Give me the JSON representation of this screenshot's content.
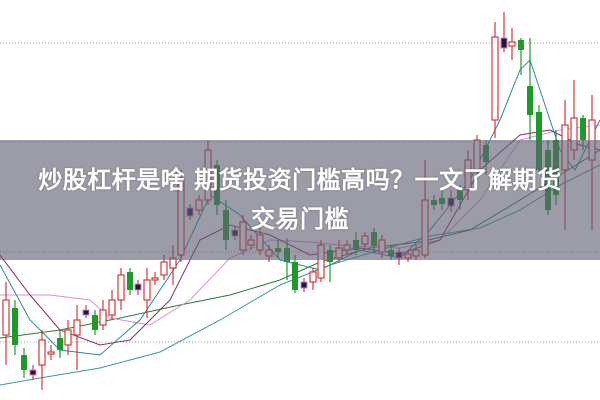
{
  "article": {
    "title_line1": "炒股杠杆是啥 期货投资门槛高吗？一文了解期货",
    "title_line2": "交易门槛"
  },
  "chart": {
    "kind": "candlestick",
    "colors": {
      "up": "#d23a3a",
      "down": "#1e9a2a",
      "ma_short": "#2a8a9a",
      "ma_mid": "#8a2a6a",
      "ma_long": "#2a7a3a",
      "ma_pink": "#e08ad8",
      "ma_teal": "#3a9aa0",
      "grid": "#999999"
    }
  }
}
